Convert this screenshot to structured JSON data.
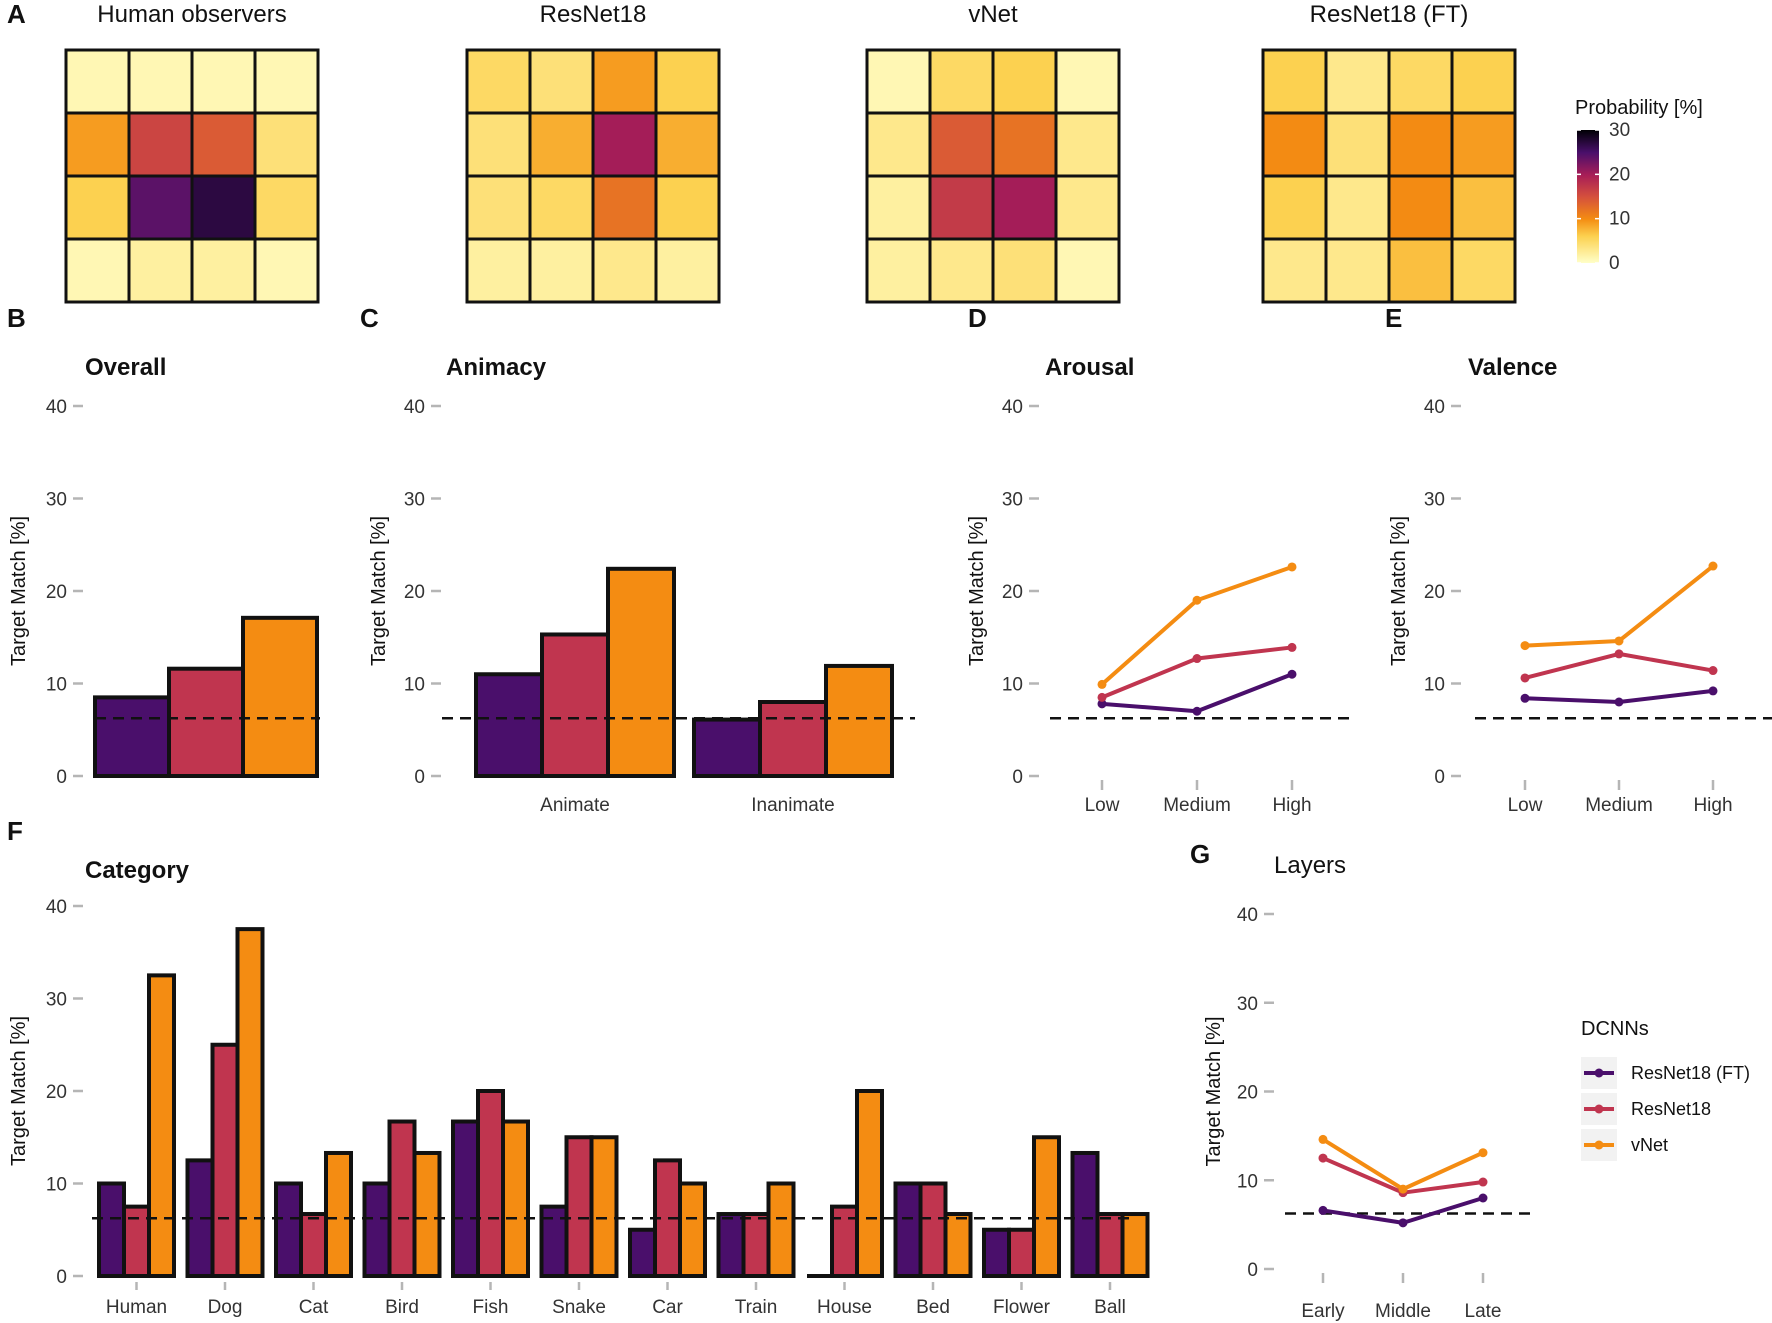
{
  "colors": {
    "resnet18_ft": "#4a0f6b",
    "resnet18": "#c0354f",
    "vnet": "#f48c12",
    "outline": "#111111",
    "tick": "#b5b5b5"
  },
  "panel_labels": [
    "A",
    "B",
    "C",
    "D",
    "E",
    "F",
    "G"
  ],
  "chart_data": [
    {
      "id": "A",
      "type": "heatmap",
      "legend_title": "Probability [%]",
      "legend_ticks": [
        30,
        20,
        10,
        0
      ],
      "legend_range": [
        0,
        30
      ],
      "maps": [
        {
          "title": "Human observers",
          "values": [
            [
              1,
              1,
              1,
              1
            ],
            [
              9,
              16,
              14,
              4
            ],
            [
              6,
              24,
              27,
              5
            ],
            [
              1,
              2,
              2,
              1
            ]
          ]
        },
        {
          "title": "ResNet18",
          "values": [
            [
              5,
              4,
              9,
              6
            ],
            [
              4,
              8,
              20,
              8
            ],
            [
              4,
              5,
              12,
              6
            ],
            [
              2,
              2,
              3,
              2
            ]
          ]
        },
        {
          "title": "vNet",
          "values": [
            [
              1,
              5,
              6,
              1
            ],
            [
              3,
              14,
              12,
              3
            ],
            [
              2,
              17,
              20,
              3
            ],
            [
              2,
              3,
              4,
              1
            ]
          ]
        },
        {
          "title": "ResNet18 (FT)",
          "values": [
            [
              6,
              3,
              5,
              6
            ],
            [
              10,
              4,
              10,
              9
            ],
            [
              6,
              3,
              10,
              7
            ],
            [
              3,
              3,
              7,
              5
            ]
          ]
        }
      ]
    },
    {
      "id": "B",
      "type": "bar",
      "title": "Overall",
      "ylabel": "Target Match [%]",
      "ylim": [
        0,
        40
      ],
      "yticks": [
        0,
        10,
        20,
        30,
        40
      ],
      "chance": 6.25,
      "categories": [
        ""
      ],
      "series": [
        {
          "name": "ResNet18 (FT)",
          "values": [
            8.5
          ]
        },
        {
          "name": "ResNet18",
          "values": [
            11.6
          ]
        },
        {
          "name": "vNet",
          "values": [
            17.1
          ]
        }
      ]
    },
    {
      "id": "C",
      "type": "bar",
      "title": "Animacy",
      "ylabel": "Target Match [%]",
      "ylim": [
        0,
        40
      ],
      "yticks": [
        0,
        10,
        20,
        30,
        40
      ],
      "chance": 6.25,
      "categories": [
        "Animate",
        "Inanimate"
      ],
      "series": [
        {
          "name": "ResNet18 (FT)",
          "values": [
            11.0,
            6.1
          ]
        },
        {
          "name": "ResNet18",
          "values": [
            15.3,
            8.0
          ]
        },
        {
          "name": "vNet",
          "values": [
            22.4,
            11.9
          ]
        }
      ]
    },
    {
      "id": "D",
      "type": "line",
      "title": "Arousal",
      "ylabel": "Target Match [%]",
      "ylim": [
        0,
        40
      ],
      "yticks": [
        0,
        10,
        20,
        30,
        40
      ],
      "chance": 6.25,
      "categories": [
        "Low",
        "Medium",
        "High"
      ],
      "series": [
        {
          "name": "ResNet18 (FT)",
          "values": [
            7.8,
            7.0,
            11.0
          ]
        },
        {
          "name": "ResNet18",
          "values": [
            8.5,
            12.7,
            13.9
          ]
        },
        {
          "name": "vNet",
          "values": [
            9.9,
            19.0,
            22.6
          ]
        }
      ]
    },
    {
      "id": "E",
      "type": "line",
      "title": "Valence",
      "ylabel": "Target Match [%]",
      "ylim": [
        0,
        40
      ],
      "yticks": [
        0,
        10,
        20,
        30,
        40
      ],
      "chance": 6.25,
      "categories": [
        "Low",
        "Medium",
        "High"
      ],
      "series": [
        {
          "name": "ResNet18 (FT)",
          "values": [
            8.4,
            8.0,
            9.2
          ]
        },
        {
          "name": "ResNet18",
          "values": [
            10.6,
            13.2,
            11.4
          ]
        },
        {
          "name": "vNet",
          "values": [
            14.1,
            14.6,
            22.7
          ]
        }
      ]
    },
    {
      "id": "F",
      "type": "bar",
      "title": "Category",
      "ylabel": "Target Match [%]",
      "ylim": [
        0,
        40
      ],
      "yticks": [
        0,
        10,
        20,
        30,
        40
      ],
      "chance": 6.25,
      "categories": [
        "Human",
        "Dog",
        "Cat",
        "Bird",
        "Fish",
        "Snake",
        "Car",
        "Train",
        "House",
        "Bed",
        "Flower",
        "Ball"
      ],
      "series": [
        {
          "name": "ResNet18 (FT)",
          "values": [
            10.0,
            12.5,
            10.0,
            10.0,
            16.7,
            7.5,
            5.0,
            6.7,
            0.0,
            10.0,
            5.0,
            13.3
          ]
        },
        {
          "name": "ResNet18",
          "values": [
            7.5,
            25.0,
            6.7,
            16.7,
            20.0,
            15.0,
            12.5,
            6.7,
            7.5,
            10.0,
            5.0,
            6.7
          ]
        },
        {
          "name": "vNet",
          "values": [
            32.5,
            37.5,
            13.3,
            13.3,
            16.7,
            15.0,
            10.0,
            10.0,
            20.0,
            6.7,
            15.0,
            6.7
          ]
        }
      ]
    },
    {
      "id": "G",
      "type": "line",
      "title": "Layers",
      "ylabel": "Target Match [%]",
      "ylim": [
        0,
        40
      ],
      "yticks": [
        0,
        10,
        20,
        30,
        40
      ],
      "chance": 6.25,
      "categories": [
        "Early",
        "Middle",
        "Late"
      ],
      "series": [
        {
          "name": "ResNet18 (FT)",
          "values": [
            6.6,
            5.2,
            8.0
          ]
        },
        {
          "name": "ResNet18",
          "values": [
            12.5,
            8.6,
            9.8
          ]
        },
        {
          "name": "vNet",
          "values": [
            14.6,
            9.0,
            13.1
          ]
        }
      ],
      "legend": {
        "title": "DCNNs",
        "placement": "right",
        "items": [
          "ResNet18 (FT)",
          "ResNet18",
          "vNet"
        ]
      }
    }
  ]
}
